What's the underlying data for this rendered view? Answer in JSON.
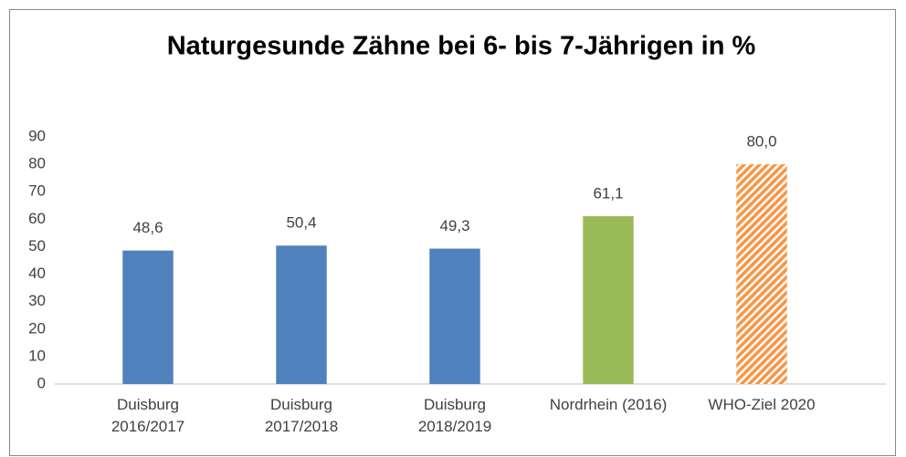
{
  "chart_data": {
    "type": "bar",
    "title": "Naturgesunde Zähne bei 6- bis 7-Jährigen in %",
    "categories": [
      "Duisburg\n2016/2017",
      "Duisburg\n2017/2018",
      "Duisburg\n2018/2019",
      "Nordrhein (2016)",
      "WHO-Ziel 2020"
    ],
    "values": [
      48.6,
      50.4,
      49.3,
      61.1,
      80.0
    ],
    "value_labels": [
      "48,6",
      "50,4",
      "49,3",
      "61,1",
      "80,0"
    ],
    "colors": [
      "#4f81bd",
      "#4f81bd",
      "#4f81bd",
      "#9bbb59",
      "#f79646"
    ],
    "hatched": [
      false,
      false,
      false,
      false,
      true
    ],
    "ylim": [
      0,
      90
    ],
    "yticks": [
      0,
      10,
      20,
      30,
      40,
      50,
      60,
      70,
      80,
      90
    ],
    "grid": false
  }
}
